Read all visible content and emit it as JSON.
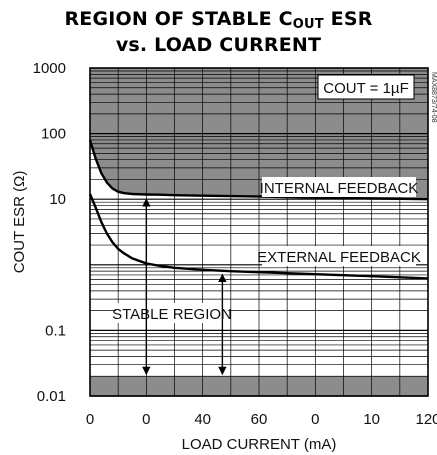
{
  "chart_data": {
    "type": "line",
    "title_line1": "REGION OF STABLE C",
    "title_sub": "OUT",
    "title_line1_end": " ESR",
    "title_line2": "vs. LOAD CURRENT",
    "xlabel": "LOAD CURRENT (mA)",
    "ylabel": "COUT ESR (Ω)",
    "xlim": [
      0,
      120
    ],
    "ylim": [
      0.01,
      1000
    ],
    "yscale": "log",
    "x_ticks": [
      "0",
      "0",
      "40",
      "60",
      "0",
      "10",
      "120"
    ],
    "y_ticks": [
      "1000",
      "100",
      "10",
      "",
      "0.1",
      "0.01"
    ],
    "legend_box": "COUT = 1µF",
    "figure_code": "MAX8873/74-08",
    "annotations": {
      "internal": "INTERNAL FEEDBACK",
      "external": "EXTERNAL FEEDBACK",
      "stable": "STABLE REGION"
    },
    "series": [
      {
        "name": "INTERNAL FEEDBACK",
        "x": [
          0,
          2,
          4,
          6,
          8,
          10,
          12,
          15,
          20,
          25,
          30,
          40,
          60,
          80,
          100,
          120
        ],
        "y": [
          80,
          42,
          25,
          18,
          14.5,
          13,
          12.4,
          12.0,
          11.8,
          11.7,
          11.5,
          11.3,
          11.0,
          10.6,
          10.3,
          10.0
        ]
      },
      {
        "name": "EXTERNAL FEEDBACK",
        "x": [
          0,
          2,
          4,
          6,
          8,
          10,
          12,
          15,
          20,
          25,
          30,
          40,
          50,
          60,
          80,
          100,
          120
        ],
        "y": [
          12,
          7.5,
          4.5,
          3.0,
          2.2,
          1.75,
          1.5,
          1.25,
          1.05,
          0.96,
          0.9,
          0.84,
          0.8,
          0.77,
          0.72,
          0.67,
          0.62
        ]
      }
    ]
  }
}
